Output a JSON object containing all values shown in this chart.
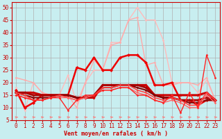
{
  "title": "",
  "xlabel": "Vent moyen/en rafales ( km/h )",
  "ylabel": "",
  "bg_color": "#c8eef0",
  "grid_color": "#b0b0b0",
  "xlim": [
    -0.5,
    23.5
  ],
  "ylim": [
    5,
    52
  ],
  "yticks": [
    5,
    10,
    15,
    20,
    25,
    30,
    35,
    40,
    45,
    50
  ],
  "xticks": [
    0,
    1,
    2,
    3,
    4,
    5,
    6,
    7,
    8,
    9,
    10,
    11,
    12,
    13,
    14,
    15,
    16,
    17,
    18,
    19,
    20,
    21,
    22,
    23
  ],
  "lines": [
    {
      "x": [
        0,
        1,
        2,
        3,
        4,
        5,
        6,
        7,
        8,
        9,
        10,
        11,
        12,
        13,
        14,
        15,
        16,
        17,
        18,
        19,
        20,
        21,
        22,
        23
      ],
      "y": [
        18,
        9,
        20,
        16,
        15,
        15,
        23,
        12,
        20,
        25,
        25,
        36,
        36,
        45,
        50,
        45,
        45,
        37,
        20,
        20,
        20,
        16,
        21,
        13
      ],
      "color": "#ffbbbb",
      "lw": 1.0,
      "marker": "D",
      "ms": 1.8
    },
    {
      "x": [
        0,
        1,
        2,
        3,
        4,
        5,
        6,
        7,
        8,
        9,
        10,
        11,
        12,
        13,
        14,
        15,
        16,
        17,
        18,
        19,
        20,
        21,
        22,
        23
      ],
      "y": [
        22,
        21,
        20,
        16,
        15,
        15,
        15,
        10,
        20,
        29,
        25,
        35,
        36,
        45,
        46,
        27,
        28,
        19,
        19,
        20,
        20,
        19,
        22,
        13
      ],
      "color": "#ffaaaa",
      "lw": 1.0,
      "marker": "D",
      "ms": 1.8
    },
    {
      "x": [
        0,
        1,
        2,
        3,
        4,
        5,
        6,
        7,
        8,
        9,
        10,
        11,
        12,
        13,
        14,
        15,
        16,
        17,
        18,
        19,
        20,
        21,
        22,
        23
      ],
      "y": [
        17,
        10,
        12,
        15,
        15,
        15,
        15,
        26,
        25,
        30,
        25,
        25,
        30,
        31,
        31,
        28,
        19,
        19,
        20,
        13,
        13,
        11,
        13,
        13
      ],
      "color": "#ee0000",
      "lw": 1.8,
      "marker": "D",
      "ms": 2.5
    },
    {
      "x": [
        0,
        1,
        2,
        3,
        4,
        5,
        6,
        7,
        8,
        9,
        10,
        11,
        12,
        13,
        14,
        15,
        16,
        17,
        18,
        19,
        20,
        21,
        22,
        23
      ],
      "y": [
        16,
        16,
        16,
        15,
        15,
        15,
        15,
        14,
        14,
        14,
        19,
        19,
        19,
        19,
        19,
        19,
        15,
        15,
        15,
        15,
        15,
        15,
        16,
        13
      ],
      "color": "#cc0000",
      "lw": 2.2,
      "marker": "D",
      "ms": 2.0
    },
    {
      "x": [
        0,
        1,
        2,
        3,
        4,
        5,
        6,
        7,
        8,
        9,
        10,
        11,
        12,
        13,
        14,
        15,
        16,
        17,
        18,
        19,
        20,
        21,
        22,
        23
      ],
      "y": [
        16,
        16,
        15,
        15,
        15,
        15,
        15,
        14,
        14,
        15,
        19,
        19,
        19,
        19,
        19,
        18,
        15,
        14,
        14,
        13,
        13,
        13,
        14,
        13
      ],
      "color": "#aa0000",
      "lw": 2.0,
      "marker": "D",
      "ms": 2.0
    },
    {
      "x": [
        0,
        1,
        2,
        3,
        4,
        5,
        6,
        7,
        8,
        9,
        10,
        11,
        12,
        13,
        14,
        15,
        16,
        17,
        18,
        19,
        20,
        21,
        22,
        23
      ],
      "y": [
        16,
        15,
        14,
        14,
        14,
        15,
        15,
        14,
        14,
        15,
        18,
        18,
        19,
        19,
        18,
        17,
        15,
        14,
        14,
        13,
        12,
        12,
        13,
        13
      ],
      "color": "#880000",
      "lw": 1.5,
      "marker": "D",
      "ms": 1.8
    },
    {
      "x": [
        0,
        1,
        2,
        3,
        4,
        5,
        6,
        7,
        8,
        9,
        10,
        11,
        12,
        13,
        14,
        15,
        16,
        17,
        18,
        19,
        20,
        21,
        22,
        23
      ],
      "y": [
        16,
        15,
        13,
        13,
        14,
        15,
        14,
        13,
        14,
        15,
        18,
        18,
        19,
        19,
        17,
        16,
        14,
        13,
        14,
        13,
        11,
        11,
        16,
        13
      ],
      "color": "#ff4444",
      "lw": 1.2,
      "marker": "D",
      "ms": 1.8
    },
    {
      "x": [
        0,
        1,
        2,
        3,
        4,
        5,
        6,
        7,
        8,
        9,
        10,
        11,
        12,
        13,
        14,
        15,
        16,
        17,
        18,
        19,
        20,
        21,
        22,
        23
      ],
      "y": [
        15,
        14,
        13,
        13,
        14,
        14,
        14,
        13,
        14,
        15,
        17,
        17,
        18,
        18,
        16,
        15,
        13,
        12,
        13,
        12,
        10,
        10,
        15,
        12
      ],
      "color": "#ff6666",
      "lw": 1.0,
      "marker": "D",
      "ms": 1.8
    },
    {
      "x": [
        0,
        1,
        2,
        3,
        4,
        5,
        6,
        7,
        8,
        9,
        10,
        11,
        12,
        13,
        14,
        15,
        16,
        17,
        18,
        19,
        20,
        21,
        22,
        23
      ],
      "y": [
        15,
        14,
        13,
        13,
        14,
        14,
        9,
        13,
        15,
        15,
        17,
        17,
        18,
        18,
        15,
        15,
        13,
        12,
        15,
        8,
        16,
        10,
        31,
        22
      ],
      "color": "#ff2222",
      "lw": 1.0,
      "marker": "D",
      "ms": 1.8
    }
  ],
  "arrow_color": "#ff7777",
  "xlabel_color": "#cc0000",
  "tick_color": "#cc0000",
  "xlabel_fontsize": 6.0,
  "tick_fontsize": 5.5
}
